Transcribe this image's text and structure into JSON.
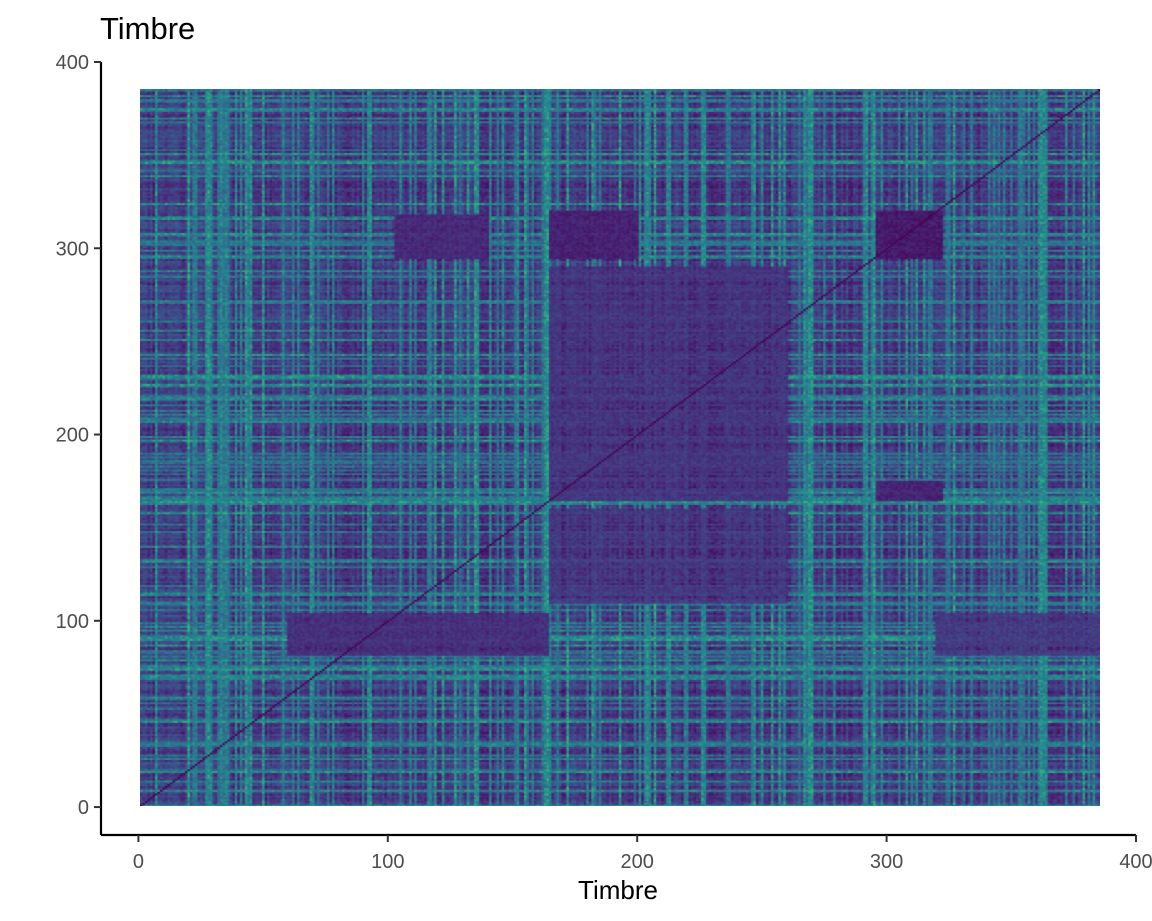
{
  "chart_data": {
    "type": "heatmap",
    "title": "Timbre",
    "xlabel": "Timbre",
    "ylabel": "",
    "n": 385,
    "xlim": [
      -15,
      400
    ],
    "ylim": [
      -15,
      400
    ],
    "x_ticks": [
      0,
      100,
      200,
      300,
      400
    ],
    "y_ticks": [
      0,
      100,
      200,
      300,
      400
    ],
    "colorscale": "viridis",
    "color_range": [
      0,
      1
    ],
    "diagonal_value": 0,
    "legend": "none",
    "grid": false,
    "bright_columns": [
      {
        "x": 9,
        "value": 0.6
      },
      {
        "x": 21,
        "value": 0.65
      },
      {
        "x": 33,
        "value": 0.9
      },
      {
        "x": 35,
        "value": 0.85
      },
      {
        "x": 73,
        "value": 0.6
      },
      {
        "x": 129,
        "value": 0.75
      },
      {
        "x": 133,
        "value": 0.7
      },
      {
        "x": 164,
        "value": 1.0
      },
      {
        "x": 168,
        "value": 0.8
      },
      {
        "x": 296,
        "value": 0.65
      },
      {
        "x": 322,
        "value": 0.55
      },
      {
        "x": 334,
        "value": 0.6
      },
      {
        "x": 343,
        "value": 0.8
      },
      {
        "x": 383,
        "value": 0.6
      }
    ],
    "bright_rows": [
      {
        "y": 20,
        "value": 0.75
      },
      {
        "y": 34,
        "value": 0.9
      },
      {
        "y": 164,
        "value": 1.0
      },
      {
        "y": 312,
        "value": 0.7
      },
      {
        "y": 342,
        "value": 0.75
      }
    ],
    "dark_blocks": [
      {
        "x": [
          296,
          322
        ],
        "y": [
          295,
          320
        ],
        "value": 0.05
      },
      {
        "x": [
          296,
          322
        ],
        "y": [
          165,
          175
        ],
        "value": 0.1
      },
      {
        "x": [
          165,
          200
        ],
        "y": [
          295,
          320
        ],
        "value": 0.08
      },
      {
        "x": [
          103,
          140
        ],
        "y": [
          295,
          318
        ],
        "value": 0.12
      },
      {
        "x": [
          60,
          164
        ],
        "y": [
          82,
          104
        ],
        "value": 0.15
      },
      {
        "x": [
          320,
          385
        ],
        "y": [
          82,
          104
        ],
        "value": 0.2
      },
      {
        "x": [
          165,
          260
        ],
        "y": [
          165,
          290
        ],
        "value": 0.18
      },
      {
        "x": [
          165,
          260
        ],
        "y": [
          110,
          160
        ],
        "value": 0.2
      }
    ]
  }
}
